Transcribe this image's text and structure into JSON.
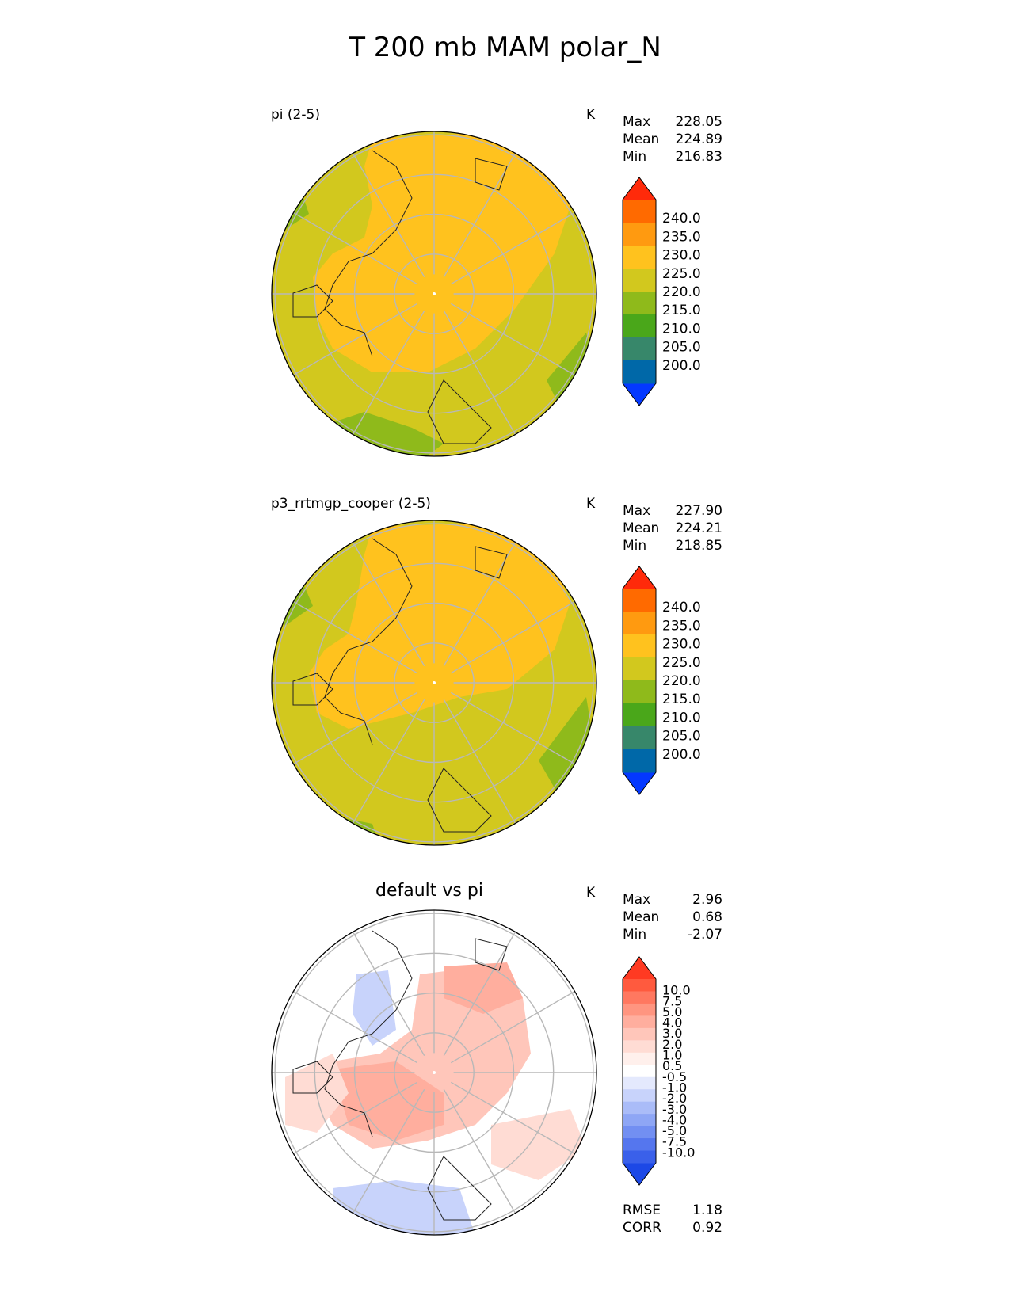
{
  "title": "T 200 mb MAM polar_N",
  "units": "K",
  "panels": [
    {
      "label": "pi (2-5)",
      "stats": {
        "max_label": "Max",
        "max": "228.05",
        "mean_label": "Mean",
        "mean": "224.89",
        "min_label": "Min",
        "min": "216.83"
      },
      "colorbar": {
        "ticks": [
          "240.0",
          "235.0",
          "230.0",
          "225.0",
          "220.0",
          "215.0",
          "210.0",
          "205.0",
          "200.0"
        ],
        "colors": [
          "#ff2a0a",
          "#ff6a00",
          "#ff9a10",
          "#ffc21e",
          "#d2c81e",
          "#8fba1b",
          "#4aa71a",
          "#37876a",
          "#0068a8",
          "#0438ff"
        ],
        "extend_top": "#ff2a0a",
        "extend_bottom": "#0438ff"
      }
    },
    {
      "label": "p3_rrtmgp_cooper (2-5)",
      "stats": {
        "max_label": "Max",
        "max": "227.90",
        "mean_label": "Mean",
        "mean": "224.21",
        "min_label": "Min",
        "min": "218.85"
      },
      "colorbar": {
        "ticks": [
          "240.0",
          "235.0",
          "230.0",
          "225.0",
          "220.0",
          "215.0",
          "210.0",
          "205.0",
          "200.0"
        ],
        "colors": [
          "#ff2a0a",
          "#ff6a00",
          "#ff9a10",
          "#ffc21e",
          "#d2c81e",
          "#8fba1b",
          "#4aa71a",
          "#37876a",
          "#0068a8",
          "#0438ff"
        ],
        "extend_top": "#ff2a0a",
        "extend_bottom": "#0438ff"
      }
    },
    {
      "label": "default vs pi",
      "stats": {
        "max_label": "Max",
        "max": "2.96",
        "mean_label": "Mean",
        "mean": "0.68",
        "min_label": "Min",
        "min": "-2.07"
      },
      "extra": {
        "rmse_label": "RMSE",
        "rmse": "1.18",
        "corr_label": "CORR",
        "corr": "0.92"
      },
      "colorbar": {
        "ticks": [
          "10.0",
          "7.5",
          "5.0",
          "4.0",
          "3.0",
          "2.0",
          "1.0",
          "0.5",
          "-0.5",
          "-1.0",
          "-2.0",
          "-3.0",
          "-4.0",
          "-5.0",
          "-7.5",
          "-10.0"
        ],
        "colors": [
          "#ff3a22",
          "#ff5a3e",
          "#ff7860",
          "#ff9580",
          "#ffae9e",
          "#ffc6ba",
          "#ffdcd4",
          "#fff0ec",
          "#ffffff",
          "#e4e9fd",
          "#c8d3fb",
          "#aabcf8",
          "#8ea6f5",
          "#728ff2",
          "#5576ee",
          "#3a60ea",
          "#1c48e6"
        ],
        "extend_top": "#ff3a22",
        "extend_bottom": "#1c48e6"
      }
    }
  ],
  "chart_data": [
    {
      "type": "heatmap",
      "projection": "north polar stereographic",
      "title": "pi (2-5)",
      "units": "K",
      "max": 228.05,
      "mean": 224.89,
      "min": 216.83,
      "levels": [
        200,
        205,
        210,
        215,
        220,
        225,
        230,
        235,
        240
      ]
    },
    {
      "type": "heatmap",
      "projection": "north polar stereographic",
      "title": "p3_rrtmgp_cooper (2-5)",
      "units": "K",
      "max": 227.9,
      "mean": 224.21,
      "min": 218.85,
      "levels": [
        200,
        205,
        210,
        215,
        220,
        225,
        230,
        235,
        240
      ]
    },
    {
      "type": "heatmap",
      "projection": "north polar stereographic",
      "title": "default vs pi",
      "units": "K",
      "max": 2.96,
      "mean": 0.68,
      "min": -2.07,
      "rmse": 1.18,
      "corr": 0.92,
      "levels": [
        -10,
        -7.5,
        -5,
        -4,
        -3,
        -2,
        -1,
        -0.5,
        0.5,
        1,
        2,
        3,
        4,
        5,
        7.5,
        10
      ]
    }
  ]
}
